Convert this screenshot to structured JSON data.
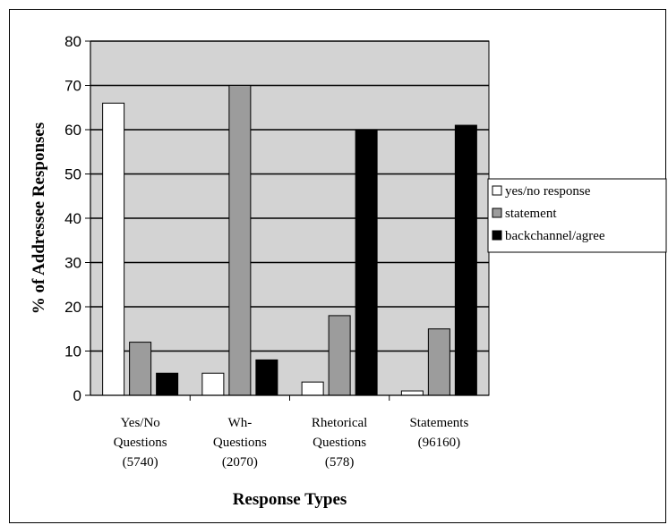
{
  "chart_data": {
    "type": "bar",
    "title": "",
    "xlabel": "Response Types",
    "ylabel": "% of Addressee Responses",
    "ylim": [
      0,
      80
    ],
    "yticks": [
      0,
      10,
      20,
      30,
      40,
      50,
      60,
      70,
      80
    ],
    "grid": true,
    "legend_position": "right",
    "categories": [
      [
        "Yes/No",
        "Questions",
        "(5740)"
      ],
      [
        "Wh-",
        "Questions",
        "(2070)"
      ],
      [
        "Rhetorical",
        "Questions",
        "(578)"
      ],
      [
        "Statements",
        "(96160)"
      ]
    ],
    "series": [
      {
        "name": "yes/no response",
        "color": "#ffffff",
        "values": [
          66,
          5,
          3,
          1
        ]
      },
      {
        "name": "statement",
        "color": "#9c9c9c",
        "values": [
          12,
          70,
          18,
          15
        ]
      },
      {
        "name": "backchannel/agree",
        "color": "#000000",
        "values": [
          5,
          8,
          60,
          61
        ]
      }
    ],
    "plot_background": "#d3d3d3"
  }
}
